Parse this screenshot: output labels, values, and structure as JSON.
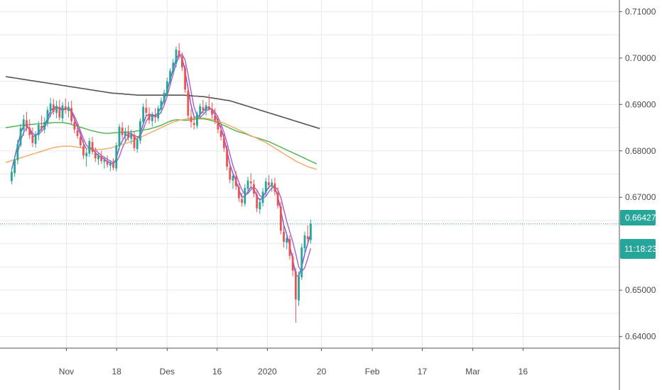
{
  "chart_data": {
    "type": "candlestick",
    "symbol_context": "Daily price chart",
    "colors": {
      "up": "#26a69a",
      "down": "#ef5350",
      "grid": "#e6e9ef",
      "axis": "#555555",
      "ma_fast": "#7b4fe0",
      "ma_fast2": "#b05cc8",
      "ma_mid_green": "#4caf50",
      "ma_mid_orange": "#f5a962",
      "ma_slow": "#555555",
      "last_price": "#26a69a",
      "tag_bg": "#26a69a"
    },
    "ylim": [
      0.6375,
      0.7125
    ],
    "y_ticks": [
      {
        "value": 0.71,
        "label": "0.71000"
      },
      {
        "value": 0.7,
        "label": "0.70000"
      },
      {
        "value": 0.69,
        "label": "0.69000"
      },
      {
        "value": 0.68,
        "label": "0.68000"
      },
      {
        "value": 0.67,
        "label": "0.67000"
      },
      {
        "value": 0.65,
        "label": "0.65000"
      },
      {
        "value": 0.64,
        "label": "0.64000"
      }
    ],
    "x_ticks": [
      {
        "index": 20.3,
        "label": "Nov"
      },
      {
        "index": 37.1,
        "label": "18"
      },
      {
        "index": 54.0,
        "label": "Des"
      },
      {
        "index": 70.7,
        "label": "16"
      },
      {
        "index": 87.5,
        "label": "2020"
      },
      {
        "index": 105.6,
        "label": "20"
      },
      {
        "index": 122.6,
        "label": "Feb"
      },
      {
        "index": 139.3,
        "label": "17"
      },
      {
        "index": 156.2,
        "label": "Mar"
      },
      {
        "index": 173.0,
        "label": "16"
      }
    ],
    "last_price": {
      "value": 0.66427,
      "label": "0.66427",
      "countdown": "11:18:23"
    },
    "candles": [
      [
        0.6735,
        0.6762,
        0.6728,
        0.6755
      ],
      [
        0.6752,
        0.6789,
        0.6744,
        0.6782
      ],
      [
        0.678,
        0.6824,
        0.6771,
        0.6815
      ],
      [
        0.6812,
        0.6858,
        0.6808,
        0.6849
      ],
      [
        0.6846,
        0.6878,
        0.6832,
        0.6868
      ],
      [
        0.6866,
        0.6884,
        0.6842,
        0.6851
      ],
      [
        0.685,
        0.6868,
        0.6826,
        0.6834
      ],
      [
        0.6832,
        0.685,
        0.6808,
        0.6817
      ],
      [
        0.6815,
        0.6843,
        0.6807,
        0.6836
      ],
      [
        0.6834,
        0.6864,
        0.6823,
        0.6856
      ],
      [
        0.6854,
        0.6876,
        0.6841,
        0.6848
      ],
      [
        0.6846,
        0.6872,
        0.6838,
        0.6862
      ],
      [
        0.686,
        0.6895,
        0.6852,
        0.6888
      ],
      [
        0.6886,
        0.6914,
        0.6873,
        0.6902
      ],
      [
        0.69,
        0.6912,
        0.6878,
        0.6884
      ],
      [
        0.6882,
        0.6908,
        0.687,
        0.6897
      ],
      [
        0.6895,
        0.691,
        0.6866,
        0.6872
      ],
      [
        0.687,
        0.6905,
        0.6862,
        0.6898
      ],
      [
        0.6896,
        0.6913,
        0.688,
        0.6888
      ],
      [
        0.6886,
        0.6906,
        0.6872,
        0.6895
      ],
      [
        0.6893,
        0.6908,
        0.6858,
        0.6864
      ],
      [
        0.6862,
        0.6872,
        0.6838,
        0.6846
      ],
      [
        0.6844,
        0.6858,
        0.6826,
        0.6832
      ],
      [
        0.683,
        0.6842,
        0.6806,
        0.6812
      ],
      [
        0.681,
        0.6822,
        0.6782,
        0.679
      ],
      [
        0.6788,
        0.6804,
        0.6766,
        0.6796
      ],
      [
        0.6794,
        0.6828,
        0.6787,
        0.6821
      ],
      [
        0.6819,
        0.683,
        0.6792,
        0.6798
      ],
      [
        0.6796,
        0.6808,
        0.6776,
        0.6784
      ],
      [
        0.6782,
        0.6796,
        0.677,
        0.679
      ],
      [
        0.6788,
        0.68,
        0.6772,
        0.6778
      ],
      [
        0.6776,
        0.6788,
        0.6762,
        0.678
      ],
      [
        0.6778,
        0.679,
        0.6764,
        0.677
      ],
      [
        0.6768,
        0.678,
        0.6756,
        0.6774
      ],
      [
        0.6772,
        0.6784,
        0.6758,
        0.6764
      ],
      [
        0.6762,
        0.6818,
        0.6756,
        0.6812
      ],
      [
        0.681,
        0.6858,
        0.6802,
        0.6852
      ],
      [
        0.685,
        0.6862,
        0.6826,
        0.6834
      ],
      [
        0.6832,
        0.685,
        0.6818,
        0.6842
      ],
      [
        0.684,
        0.6855,
        0.6822,
        0.6828
      ],
      [
        0.6826,
        0.6846,
        0.6814,
        0.6836
      ],
      [
        0.6834,
        0.6842,
        0.68,
        0.6806
      ],
      [
        0.6804,
        0.683,
        0.6796,
        0.6824
      ],
      [
        0.6822,
        0.687,
        0.6815,
        0.6864
      ],
      [
        0.6862,
        0.6902,
        0.6855,
        0.6895
      ],
      [
        0.6893,
        0.6912,
        0.6876,
        0.6882
      ],
      [
        0.688,
        0.6894,
        0.6858,
        0.6866
      ],
      [
        0.6864,
        0.6884,
        0.6852,
        0.6878
      ],
      [
        0.6876,
        0.6892,
        0.686,
        0.6872
      ],
      [
        0.687,
        0.6898,
        0.6864,
        0.6892
      ],
      [
        0.689,
        0.6915,
        0.688,
        0.6908
      ],
      [
        0.6906,
        0.6932,
        0.6898,
        0.6925
      ],
      [
        0.6923,
        0.6958,
        0.6915,
        0.695
      ],
      [
        0.6948,
        0.6978,
        0.694,
        0.6972
      ],
      [
        0.697,
        0.6998,
        0.6962,
        0.699
      ],
      [
        0.6988,
        0.7025,
        0.698,
        0.7018
      ],
      [
        0.7016,
        0.7032,
        0.6998,
        0.7005
      ],
      [
        0.7003,
        0.7012,
        0.6972,
        0.698
      ],
      [
        0.6978,
        0.6985,
        0.6925,
        0.6932
      ],
      [
        0.693,
        0.6938,
        0.6868,
        0.6876
      ],
      [
        0.6874,
        0.689,
        0.685,
        0.6862
      ],
      [
        0.686,
        0.6874,
        0.6846,
        0.6856
      ],
      [
        0.6854,
        0.6885,
        0.6848,
        0.688
      ],
      [
        0.6878,
        0.6902,
        0.687,
        0.6896
      ],
      [
        0.6894,
        0.691,
        0.688,
        0.6888
      ],
      [
        0.6886,
        0.6905,
        0.6876,
        0.6898
      ],
      [
        0.6896,
        0.6922,
        0.6886,
        0.689
      ],
      [
        0.6888,
        0.6904,
        0.687,
        0.6878
      ],
      [
        0.6876,
        0.6892,
        0.6858,
        0.6866
      ],
      [
        0.6864,
        0.6876,
        0.6838,
        0.6846
      ],
      [
        0.6844,
        0.6856,
        0.6822,
        0.683
      ],
      [
        0.6828,
        0.6838,
        0.6798,
        0.6806
      ],
      [
        0.6804,
        0.6812,
        0.6758,
        0.6766
      ],
      [
        0.6764,
        0.6776,
        0.673,
        0.6738
      ],
      [
        0.6736,
        0.6752,
        0.6718,
        0.6746
      ],
      [
        0.6744,
        0.6756,
        0.6716,
        0.6724
      ],
      [
        0.6722,
        0.673,
        0.669,
        0.6698
      ],
      [
        0.6696,
        0.671,
        0.668,
        0.6688
      ],
      [
        0.6686,
        0.6728,
        0.668,
        0.672
      ],
      [
        0.6718,
        0.6744,
        0.671,
        0.6736
      ],
      [
        0.6734,
        0.6752,
        0.6722,
        0.673
      ],
      [
        0.6728,
        0.6738,
        0.67,
        0.6708
      ],
      [
        0.6706,
        0.6714,
        0.6668,
        0.6676
      ],
      [
        0.6674,
        0.6698,
        0.6664,
        0.669
      ],
      [
        0.6688,
        0.672,
        0.668,
        0.6712
      ],
      [
        0.671,
        0.6742,
        0.6702,
        0.6734
      ],
      [
        0.6732,
        0.6748,
        0.6718,
        0.6726
      ],
      [
        0.6724,
        0.674,
        0.6712,
        0.6732
      ],
      [
        0.673,
        0.6742,
        0.6704,
        0.6712
      ],
      [
        0.671,
        0.6722,
        0.6676,
        0.6682
      ],
      [
        0.668,
        0.669,
        0.662,
        0.6628
      ],
      [
        0.6626,
        0.664,
        0.6592,
        0.6604
      ],
      [
        0.6602,
        0.6622,
        0.6588,
        0.6612
      ],
      [
        0.661,
        0.6618,
        0.6566,
        0.6574
      ],
      [
        0.6572,
        0.658,
        0.653,
        0.6542
      ],
      [
        0.654,
        0.6548,
        0.643,
        0.648
      ],
      [
        0.6478,
        0.654,
        0.6466,
        0.653
      ],
      [
        0.6528,
        0.66,
        0.6522,
        0.6592
      ],
      [
        0.659,
        0.6626,
        0.6582,
        0.6618
      ],
      [
        0.6616,
        0.664,
        0.6604,
        0.661
      ],
      [
        0.6608,
        0.6652,
        0.66,
        0.6643
      ]
    ],
    "candle_x_start": 2,
    "candle_spacing": 1.0,
    "series": [
      {
        "name": "MA fast A",
        "color_key": "ma_fast",
        "from": 2,
        "values": [
          0.676,
          0.6785,
          0.6812,
          0.6838,
          0.6854,
          0.6856,
          0.6846,
          0.6832,
          0.6832,
          0.684,
          0.6848,
          0.6856,
          0.687,
          0.6886,
          0.6893,
          0.6895,
          0.689,
          0.6888,
          0.689,
          0.6892,
          0.6884,
          0.6868,
          0.6852,
          0.6836,
          0.6816,
          0.6804,
          0.6806,
          0.6804,
          0.6796,
          0.679,
          0.6786,
          0.6782,
          0.6777,
          0.6774,
          0.6772,
          0.6784,
          0.6808,
          0.6822,
          0.6832,
          0.6836,
          0.6838,
          0.683,
          0.6824,
          0.6836,
          0.6858,
          0.6876,
          0.6878,
          0.6878,
          0.6876,
          0.6882,
          0.6894,
          0.691,
          0.693,
          0.6954,
          0.6976,
          0.6998,
          0.7008,
          0.7,
          0.6972,
          0.6934,
          0.6898,
          0.6874,
          0.687,
          0.6878,
          0.6886,
          0.6892,
          0.6894,
          0.6888,
          0.6878,
          0.6864,
          0.6848,
          0.6828,
          0.68,
          0.677,
          0.6752,
          0.6736,
          0.6716,
          0.67,
          0.6702,
          0.6712,
          0.6722,
          0.6718,
          0.6702,
          0.6694,
          0.67,
          0.6712,
          0.6722,
          0.6726,
          0.672,
          0.6702,
          0.6672,
          0.664,
          0.662,
          0.6596,
          0.6566,
          0.6532,
          0.653,
          0.655,
          0.6578,
          0.66,
          0.6622
        ]
      },
      {
        "name": "MA fast B",
        "color_key": "ma_fast2",
        "from": 4,
        "values": [
          0.6795,
          0.6822,
          0.684,
          0.685,
          0.6848,
          0.6838,
          0.6834,
          0.6836,
          0.6842,
          0.685,
          0.6864,
          0.6878,
          0.6888,
          0.6893,
          0.6893,
          0.6891,
          0.689,
          0.6891,
          0.6887,
          0.6875,
          0.686,
          0.6843,
          0.6826,
          0.6812,
          0.6806,
          0.6806,
          0.6802,
          0.6796,
          0.679,
          0.6786,
          0.6782,
          0.6778,
          0.6775,
          0.6776,
          0.6788,
          0.6806,
          0.682,
          0.683,
          0.6834,
          0.6834,
          0.683,
          0.6832,
          0.6846,
          0.6864,
          0.6874,
          0.6876,
          0.6874,
          0.6876,
          0.6884,
          0.6898,
          0.6918,
          0.6942,
          0.6966,
          0.6988,
          0.7004,
          0.7008,
          0.6996,
          0.6964,
          0.6928,
          0.6894,
          0.6876,
          0.6872,
          0.6878,
          0.6886,
          0.689,
          0.689,
          0.6884,
          0.6872,
          0.6858,
          0.684,
          0.6818,
          0.6792,
          0.6768,
          0.675,
          0.6732,
          0.6716,
          0.6706,
          0.6708,
          0.6716,
          0.6722,
          0.6716,
          0.6704,
          0.6698,
          0.6702,
          0.6712,
          0.672,
          0.6722,
          0.6716,
          0.67,
          0.6674,
          0.6648,
          0.6626,
          0.6604,
          0.6578,
          0.655,
          0.654,
          0.6548,
          0.6568,
          0.659
        ]
      },
      {
        "name": "MA mid green",
        "color_key": "ma_mid_green",
        "from": 0,
        "values": [
          0.685,
          0.6851,
          0.6852,
          0.6853,
          0.6854,
          0.6855,
          0.6856,
          0.6856,
          0.6857,
          0.6857,
          0.6858,
          0.6858,
          0.6859,
          0.6859,
          0.686,
          0.686,
          0.6861,
          0.6861,
          0.6861,
          0.6861,
          0.686,
          0.6859,
          0.6857,
          0.6855,
          0.6853,
          0.6851,
          0.6849,
          0.6847,
          0.6845,
          0.6843,
          0.6842,
          0.684,
          0.6839,
          0.6838,
          0.6838,
          0.6838,
          0.6839,
          0.6839,
          0.684,
          0.684,
          0.684,
          0.6841,
          0.6841,
          0.6842,
          0.6843,
          0.6844,
          0.6845,
          0.6846,
          0.6847,
          0.6849,
          0.6851,
          0.6853,
          0.6855,
          0.6858,
          0.6861,
          0.6864,
          0.6866,
          0.6867,
          0.6867,
          0.6866,
          0.6866,
          0.6866,
          0.6867,
          0.6868,
          0.6869,
          0.6869,
          0.6869,
          0.6868,
          0.6867,
          0.6865,
          0.6863,
          0.6861,
          0.6858,
          0.6855,
          0.6852,
          0.6849,
          0.6846,
          0.6843,
          0.6841,
          0.6839,
          0.6837,
          0.6835,
          0.6832,
          0.683,
          0.6828,
          0.6826,
          0.6824,
          0.6822,
          0.682,
          0.6817,
          0.6814,
          0.6811,
          0.6808,
          0.6805,
          0.6802,
          0.6799,
          0.6796,
          0.6793,
          0.679,
          0.6787,
          0.6784,
          0.6781,
          0.6778,
          0.6775,
          0.6772
        ]
      },
      {
        "name": "MA mid orange",
        "color_key": "ma_mid_orange",
        "from": 0,
        "values": [
          0.6775,
          0.6777,
          0.6779,
          0.6781,
          0.6783,
          0.6785,
          0.6787,
          0.6789,
          0.6791,
          0.6793,
          0.6795,
          0.6797,
          0.6799,
          0.6801,
          0.6803,
          0.6805,
          0.6807,
          0.6808,
          0.6809,
          0.681,
          0.681,
          0.681,
          0.681,
          0.6809,
          0.6808,
          0.6807,
          0.6806,
          0.6805,
          0.6804,
          0.6803,
          0.6803,
          0.6803,
          0.6803,
          0.6804,
          0.6805,
          0.6806,
          0.6808,
          0.681,
          0.6812,
          0.6814,
          0.6816,
          0.6818,
          0.682,
          0.6823,
          0.6826,
          0.6829,
          0.6832,
          0.6835,
          0.6838,
          0.6841,
          0.6844,
          0.6847,
          0.685,
          0.6853,
          0.6856,
          0.6859,
          0.6862,
          0.6864,
          0.6866,
          0.6867,
          0.6868,
          0.6869,
          0.687,
          0.6871,
          0.6871,
          0.6871,
          0.6871,
          0.687,
          0.6869,
          0.6868,
          0.6866,
          0.6864,
          0.6862,
          0.686,
          0.6857,
          0.6854,
          0.6851,
          0.6848,
          0.6845,
          0.6842,
          0.6839,
          0.6836,
          0.6833,
          0.683,
          0.6827,
          0.6824,
          0.6821,
          0.6818,
          0.6814,
          0.681,
          0.6806,
          0.6802,
          0.6798,
          0.6794,
          0.679,
          0.6786,
          0.6782,
          0.6778,
          0.6775,
          0.6772,
          0.6769,
          0.6766,
          0.6764,
          0.6762,
          0.676
        ]
      },
      {
        "name": "MA slow",
        "color_key": "ma_slow",
        "from": 0,
        "values": [
          0.696,
          0.6959,
          0.6958,
          0.6957,
          0.6956,
          0.6955,
          0.6954,
          0.6953,
          0.6952,
          0.6951,
          0.695,
          0.6949,
          0.6948,
          0.6947,
          0.6946,
          0.6945,
          0.6944,
          0.6943,
          0.6942,
          0.6941,
          0.694,
          0.6939,
          0.6938,
          0.6937,
          0.6936,
          0.6935,
          0.6934,
          0.6933,
          0.6932,
          0.6931,
          0.693,
          0.6929,
          0.6928,
          0.6927,
          0.6926,
          0.6925,
          0.6924,
          0.6924,
          0.6923,
          0.6923,
          0.6922,
          0.6922,
          0.6921,
          0.6921,
          0.692,
          0.692,
          0.692,
          0.692,
          0.692,
          0.692,
          0.692,
          0.692,
          0.692,
          0.692,
          0.692,
          0.692,
          0.692,
          0.692,
          0.692,
          0.692,
          0.692,
          0.6919,
          0.6919,
          0.6918,
          0.6918,
          0.6917,
          0.6917,
          0.6916,
          0.6915,
          0.6914,
          0.6913,
          0.6912,
          0.6911,
          0.691,
          0.6909,
          0.6908,
          0.6906,
          0.6904,
          0.6902,
          0.69,
          0.6898,
          0.6896,
          0.6894,
          0.6892,
          0.689,
          0.6888,
          0.6886,
          0.6884,
          0.6882,
          0.688,
          0.6878,
          0.6876,
          0.6874,
          0.6872,
          0.687,
          0.6868,
          0.6866,
          0.6864,
          0.6862,
          0.686,
          0.6858,
          0.6856,
          0.6854,
          0.6852,
          0.685,
          0.6848
        ]
      }
    ]
  }
}
